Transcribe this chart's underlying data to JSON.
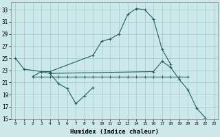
{
  "background_color": "#cce8e8",
  "grid_color": "#99cccc",
  "line_color": "#206060",
  "xlabel": "Humidex (Indice chaleur)",
  "ylim": [
    15,
    34
  ],
  "xlim": [
    -0.5,
    23.5
  ],
  "yticks": [
    15,
    17,
    19,
    21,
    23,
    25,
    27,
    29,
    31,
    33
  ],
  "xticks": [
    0,
    1,
    2,
    3,
    4,
    5,
    6,
    7,
    8,
    9,
    10,
    11,
    12,
    13,
    14,
    15,
    16,
    17,
    18,
    19,
    20,
    21,
    22,
    23
  ],
  "s1x": [
    0,
    1,
    3,
    4,
    9,
    10,
    11,
    12,
    13,
    14,
    15,
    16,
    17,
    18
  ],
  "s1y": [
    25.0,
    23.2,
    22.8,
    22.8,
    25.5,
    27.8,
    28.2,
    29.0,
    32.2,
    33.2,
    33.0,
    31.5,
    26.5,
    24.0
  ],
  "s2x": [
    2,
    3,
    4,
    5,
    6,
    7,
    8,
    9
  ],
  "s2y": [
    22.0,
    22.8,
    22.5,
    20.8,
    20.0,
    17.5,
    18.8,
    20.2
  ],
  "s3x": [
    2,
    3,
    4,
    5,
    6,
    7,
    8,
    9,
    10,
    11,
    12,
    13,
    14,
    15,
    16,
    17,
    18,
    19,
    20
  ],
  "s3y": [
    22.0,
    22.0,
    22.0,
    22.0,
    22.0,
    22.0,
    22.0,
    22.0,
    22.0,
    22.0,
    22.0,
    22.0,
    22.0,
    22.0,
    22.0,
    22.0,
    22.0,
    22.0,
    22.0
  ],
  "s4x": [
    4,
    16,
    17,
    18,
    19,
    20,
    21,
    22
  ],
  "s4y": [
    22.5,
    22.8,
    24.5,
    23.5,
    21.5,
    19.8,
    16.8,
    15.2
  ]
}
